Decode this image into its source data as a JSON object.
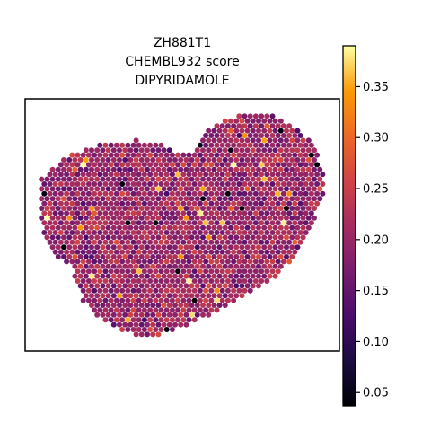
{
  "chart_data": {
    "type": "scatter",
    "subtype": "spatial-hex-spot-map",
    "title_lines": [
      "ZH881T1",
      "CHEMBL932 score",
      "DIPYRIDAMOLE"
    ],
    "xlabel": "",
    "ylabel": "",
    "colormap": "inferno",
    "color_range": [
      0.037,
      0.39
    ],
    "colorbar_ticks": [
      {
        "value": 0.05,
        "label": "0.05"
      },
      {
        "value": 0.1,
        "label": "0.10"
      },
      {
        "value": 0.15,
        "label": "0.15"
      },
      {
        "value": 0.2,
        "label": "0.20"
      },
      {
        "value": 0.25,
        "label": "0.25"
      },
      {
        "value": 0.3,
        "label": "0.30"
      },
      {
        "value": 0.35,
        "label": "0.35"
      }
    ],
    "typical_score_range": [
      0.12,
      0.28
    ],
    "grid": false,
    "legend": "colorbar-right"
  }
}
